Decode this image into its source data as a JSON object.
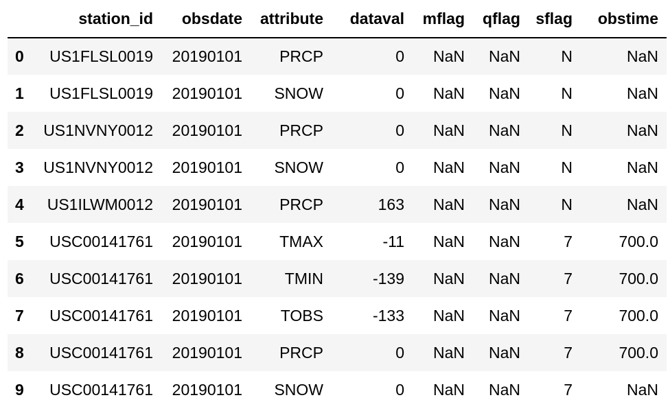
{
  "table": {
    "columns": [
      "",
      "station_id",
      "obsdate",
      "attribute",
      "dataval",
      "mflag",
      "qflag",
      "sflag",
      "obstime"
    ],
    "rows": [
      {
        "index": "0",
        "station_id": "US1FLSL0019",
        "obsdate": "20190101",
        "attribute": "PRCP",
        "dataval": "0",
        "mflag": "NaN",
        "qflag": "NaN",
        "sflag": "N",
        "obstime": "NaN"
      },
      {
        "index": "1",
        "station_id": "US1FLSL0019",
        "obsdate": "20190101",
        "attribute": "SNOW",
        "dataval": "0",
        "mflag": "NaN",
        "qflag": "NaN",
        "sflag": "N",
        "obstime": "NaN"
      },
      {
        "index": "2",
        "station_id": "US1NVNY0012",
        "obsdate": "20190101",
        "attribute": "PRCP",
        "dataval": "0",
        "mflag": "NaN",
        "qflag": "NaN",
        "sflag": "N",
        "obstime": "NaN"
      },
      {
        "index": "3",
        "station_id": "US1NVNY0012",
        "obsdate": "20190101",
        "attribute": "SNOW",
        "dataval": "0",
        "mflag": "NaN",
        "qflag": "NaN",
        "sflag": "N",
        "obstime": "NaN"
      },
      {
        "index": "4",
        "station_id": "US1ILWM0012",
        "obsdate": "20190101",
        "attribute": "PRCP",
        "dataval": "163",
        "mflag": "NaN",
        "qflag": "NaN",
        "sflag": "N",
        "obstime": "NaN"
      },
      {
        "index": "5",
        "station_id": "USC00141761",
        "obsdate": "20190101",
        "attribute": "TMAX",
        "dataval": "-11",
        "mflag": "NaN",
        "qflag": "NaN",
        "sflag": "7",
        "obstime": "700.0"
      },
      {
        "index": "6",
        "station_id": "USC00141761",
        "obsdate": "20190101",
        "attribute": "TMIN",
        "dataval": "-139",
        "mflag": "NaN",
        "qflag": "NaN",
        "sflag": "7",
        "obstime": "700.0"
      },
      {
        "index": "7",
        "station_id": "USC00141761",
        "obsdate": "20190101",
        "attribute": "TOBS",
        "dataval": "-133",
        "mflag": "NaN",
        "qflag": "NaN",
        "sflag": "7",
        "obstime": "700.0"
      },
      {
        "index": "8",
        "station_id": "USC00141761",
        "obsdate": "20190101",
        "attribute": "PRCP",
        "dataval": "0",
        "mflag": "NaN",
        "qflag": "NaN",
        "sflag": "7",
        "obstime": "700.0"
      },
      {
        "index": "9",
        "station_id": "USC00141761",
        "obsdate": "20190101",
        "attribute": "SNOW",
        "dataval": "0",
        "mflag": "NaN",
        "qflag": "NaN",
        "sflag": "7",
        "obstime": "NaN"
      }
    ]
  },
  "colors": {
    "stripe": "#f5f5f5",
    "background": "#ffffff",
    "text": "#000000",
    "header_rule": "#000000"
  }
}
